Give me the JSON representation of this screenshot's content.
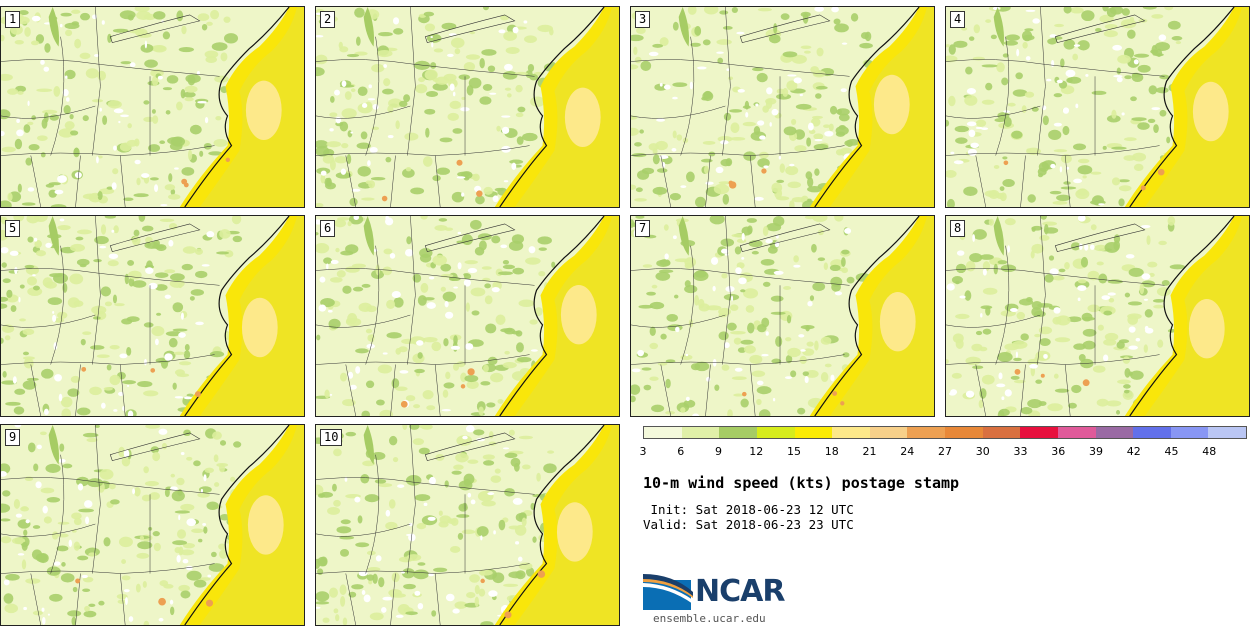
{
  "panels": [
    {
      "label": "1"
    },
    {
      "label": "2"
    },
    {
      "label": "3"
    },
    {
      "label": "4"
    },
    {
      "label": "5"
    },
    {
      "label": "6"
    },
    {
      "label": "7"
    },
    {
      "label": "8"
    },
    {
      "label": "9"
    },
    {
      "label": "10"
    }
  ],
  "legend": {
    "colors": [
      "#f4f9dc",
      "#e0f0a8",
      "#a6cc64",
      "#d6ec1c",
      "#fbeb04",
      "#fde98a",
      "#f7d08a",
      "#eda052",
      "#e88838",
      "#d97040",
      "#e8103e",
      "#e05a9a",
      "#9a6aa4",
      "#6270ea",
      "#8896f4",
      "#bac6f4"
    ],
    "ticks": [
      "3",
      "6",
      "9",
      "12",
      "15",
      "18",
      "21",
      "24",
      "27",
      "30",
      "33",
      "36",
      "39",
      "42",
      "45",
      "48"
    ]
  },
  "title": "10-m wind speed (kts) postage stamp",
  "init": " Init: Sat 2018-06-23 12 UTC",
  "valid": "Valid: Sat 2018-06-23 23 UTC",
  "logo": {
    "wordmark": "NCAR"
  },
  "site": "ensemble.ucar.edu"
}
